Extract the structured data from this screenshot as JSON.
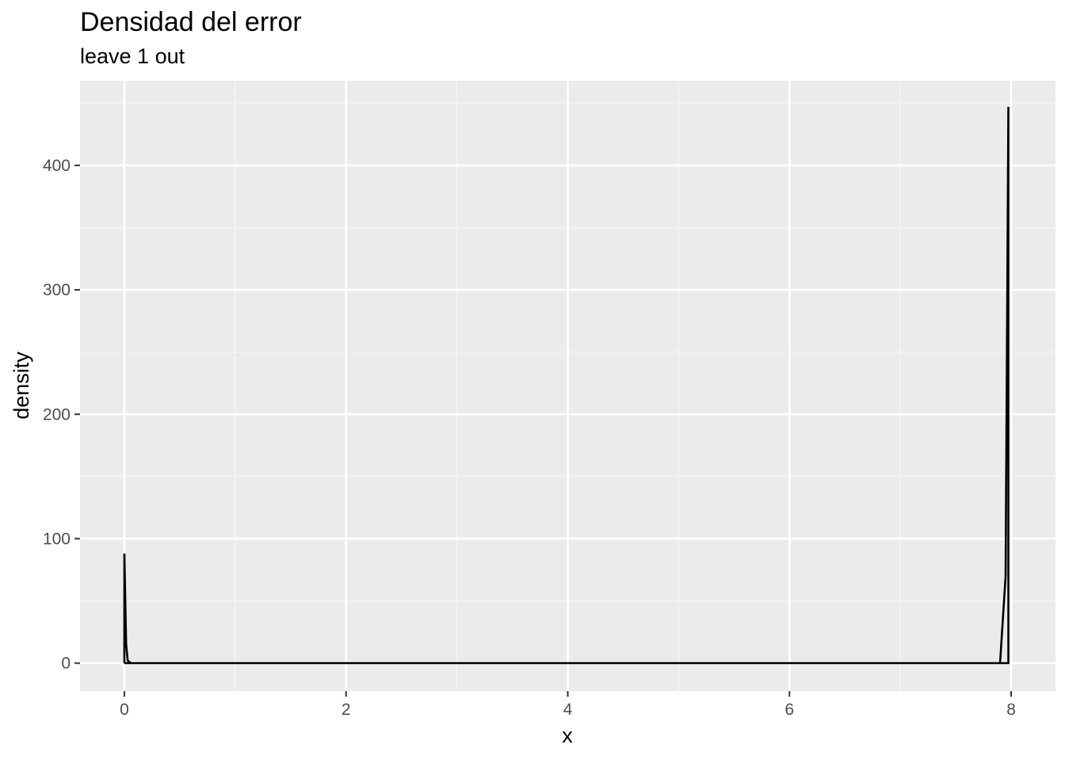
{
  "chart_data": {
    "type": "line",
    "title": "Densidad del error",
    "subtitle": "leave 1 out",
    "xlabel": "x",
    "ylabel": "density",
    "xlim": [
      -0.4,
      8.4
    ],
    "ylim": [
      -22.5,
      468
    ],
    "x_ticks": [
      0,
      2,
      4,
      6,
      8
    ],
    "x_tick_labels": [
      "0",
      "2",
      "4",
      "6",
      "8"
    ],
    "y_ticks": [
      0,
      100,
      200,
      300,
      400
    ],
    "y_tick_labels": [
      "0",
      "100",
      "200",
      "300",
      "400"
    ],
    "grid": true,
    "legend": "none",
    "colors": {
      "panel_background": "#ebebeb",
      "grid_major": "#ffffff",
      "grid_minor": "#f5f5f5",
      "line": "#000000",
      "tick_text": "#4d4d4d"
    },
    "series": [
      {
        "x": [
          0,
          0,
          0.016,
          0.03,
          0.06,
          4.0,
          7.9,
          7.95,
          7.975,
          7.975,
          7.95,
          7.9,
          4.0,
          0.06,
          0.03,
          0.016,
          0,
          0
        ],
        "y": [
          0,
          88,
          15,
          2,
          0,
          0,
          0,
          70,
          447,
          0,
          0,
          0,
          0,
          0,
          0,
          0,
          0,
          0
        ]
      }
    ]
  }
}
